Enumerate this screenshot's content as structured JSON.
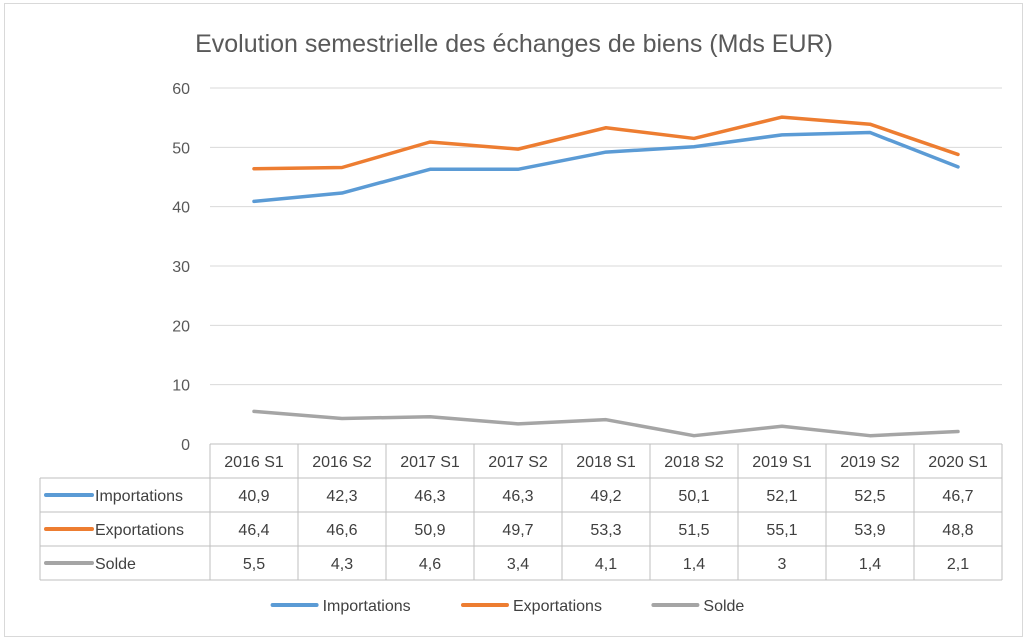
{
  "chart_data": {
    "type": "line",
    "title": "Evolution semestrielle des échanges de biens (Mds EUR)",
    "xlabel": "",
    "ylabel": "",
    "ylim": [
      0,
      60
    ],
    "yticks": [
      0,
      10,
      20,
      30,
      40,
      50,
      60
    ],
    "grid": true,
    "legend_position": "bottom",
    "data_table": true,
    "categories": [
      "2016 S1",
      "2016 S2",
      "2017 S1",
      "2017 S2",
      "2018 S1",
      "2018 S2",
      "2019 S1",
      "2019 S2",
      "2020 S1"
    ],
    "series": [
      {
        "name": "Importations",
        "color": "#5b9bd5",
        "values": [
          40.9,
          42.3,
          46.3,
          46.3,
          49.2,
          50.1,
          52.1,
          52.5,
          46.7
        ],
        "labels": [
          "40,9",
          "42,3",
          "46,3",
          "46,3",
          "49,2",
          "50,1",
          "52,1",
          "52,5",
          "46,7"
        ]
      },
      {
        "name": "Exportations",
        "color": "#ed7d31",
        "values": [
          46.4,
          46.6,
          50.9,
          49.7,
          53.3,
          51.5,
          55.1,
          53.9,
          48.8
        ],
        "labels": [
          "46,4",
          "46,6",
          "50,9",
          "49,7",
          "53,3",
          "51,5",
          "55,1",
          "53,9",
          "48,8"
        ]
      },
      {
        "name": "Solde",
        "color": "#a5a5a5",
        "values": [
          5.5,
          4.3,
          4.6,
          3.4,
          4.1,
          1.4,
          3,
          1.4,
          2.1
        ],
        "labels": [
          "5,5",
          "4,3",
          "4,6",
          "3,4",
          "4,1",
          "1,4",
          "3",
          "1,4",
          "2,1"
        ]
      }
    ]
  }
}
